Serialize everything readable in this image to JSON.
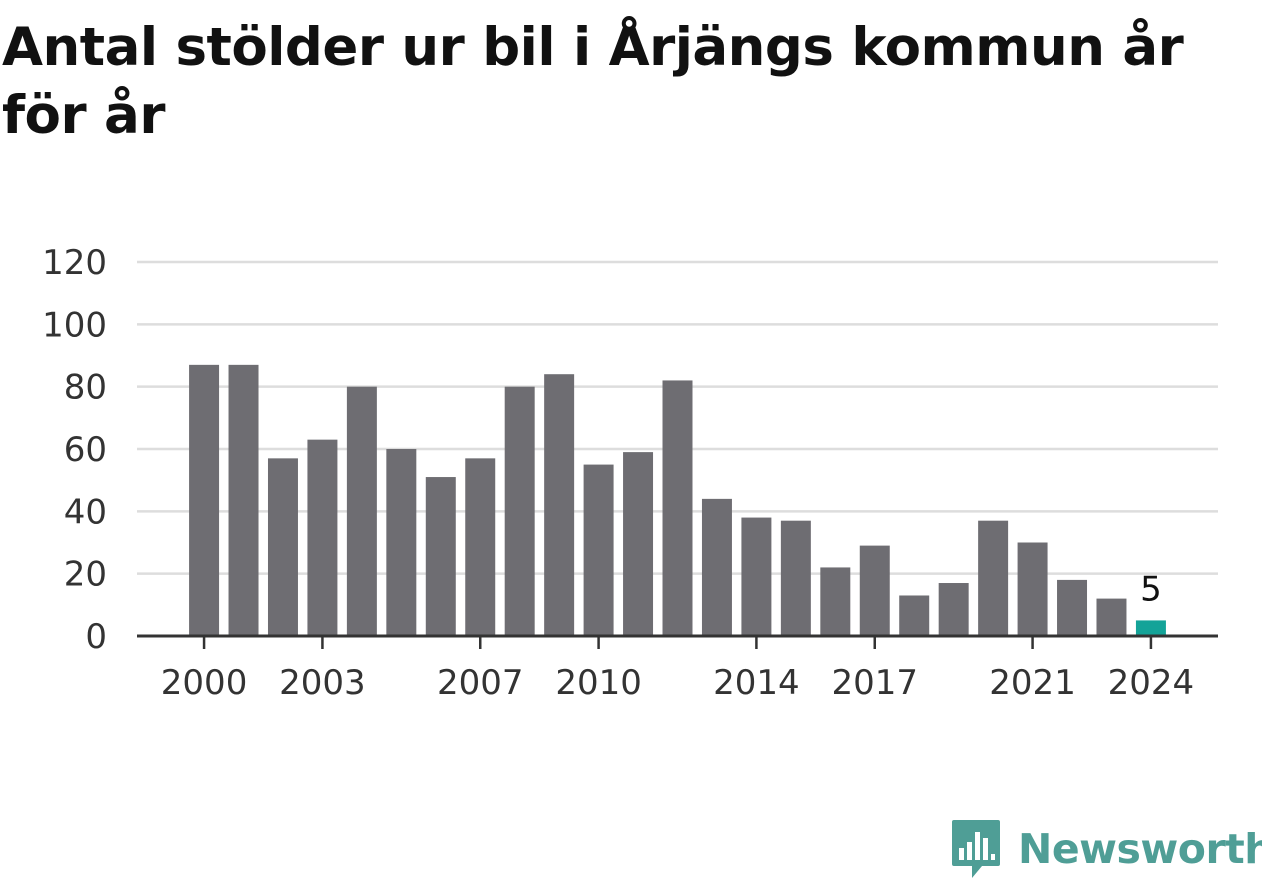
{
  "title": "Antal stölder ur bil i Årjängs kommun år för år",
  "brand": {
    "name": "Newsworthy",
    "icon": "newsworthy-logo-icon",
    "color": "#4f9e96"
  },
  "colors": {
    "bar": "#6e6d72",
    "highlight": "#14a398",
    "grid": "#dddddd",
    "axis": "#333333"
  },
  "chart_data": {
    "type": "bar",
    "title": "Antal stölder ur bil i Årjängs kommun år för år",
    "xlabel": "",
    "ylabel": "",
    "categories": [
      2000,
      2001,
      2002,
      2003,
      2004,
      2005,
      2006,
      2007,
      2008,
      2009,
      2010,
      2011,
      2012,
      2013,
      2014,
      2015,
      2016,
      2017,
      2018,
      2019,
      2020,
      2021,
      2022,
      2023,
      2024
    ],
    "values": [
      87,
      87,
      57,
      63,
      80,
      60,
      51,
      57,
      80,
      84,
      55,
      59,
      82,
      44,
      38,
      37,
      22,
      29,
      13,
      17,
      37,
      30,
      18,
      12,
      5
    ],
    "highlight_index": 24,
    "highlight_label": "5",
    "ylim": [
      0,
      120
    ],
    "y_ticks": [
      0,
      20,
      40,
      60,
      80,
      100,
      120
    ],
    "x_ticks": [
      "2000",
      "2003",
      "2007",
      "2010",
      "2014",
      "2017",
      "2021",
      "2024"
    ],
    "grid": true,
    "legend": "none"
  }
}
